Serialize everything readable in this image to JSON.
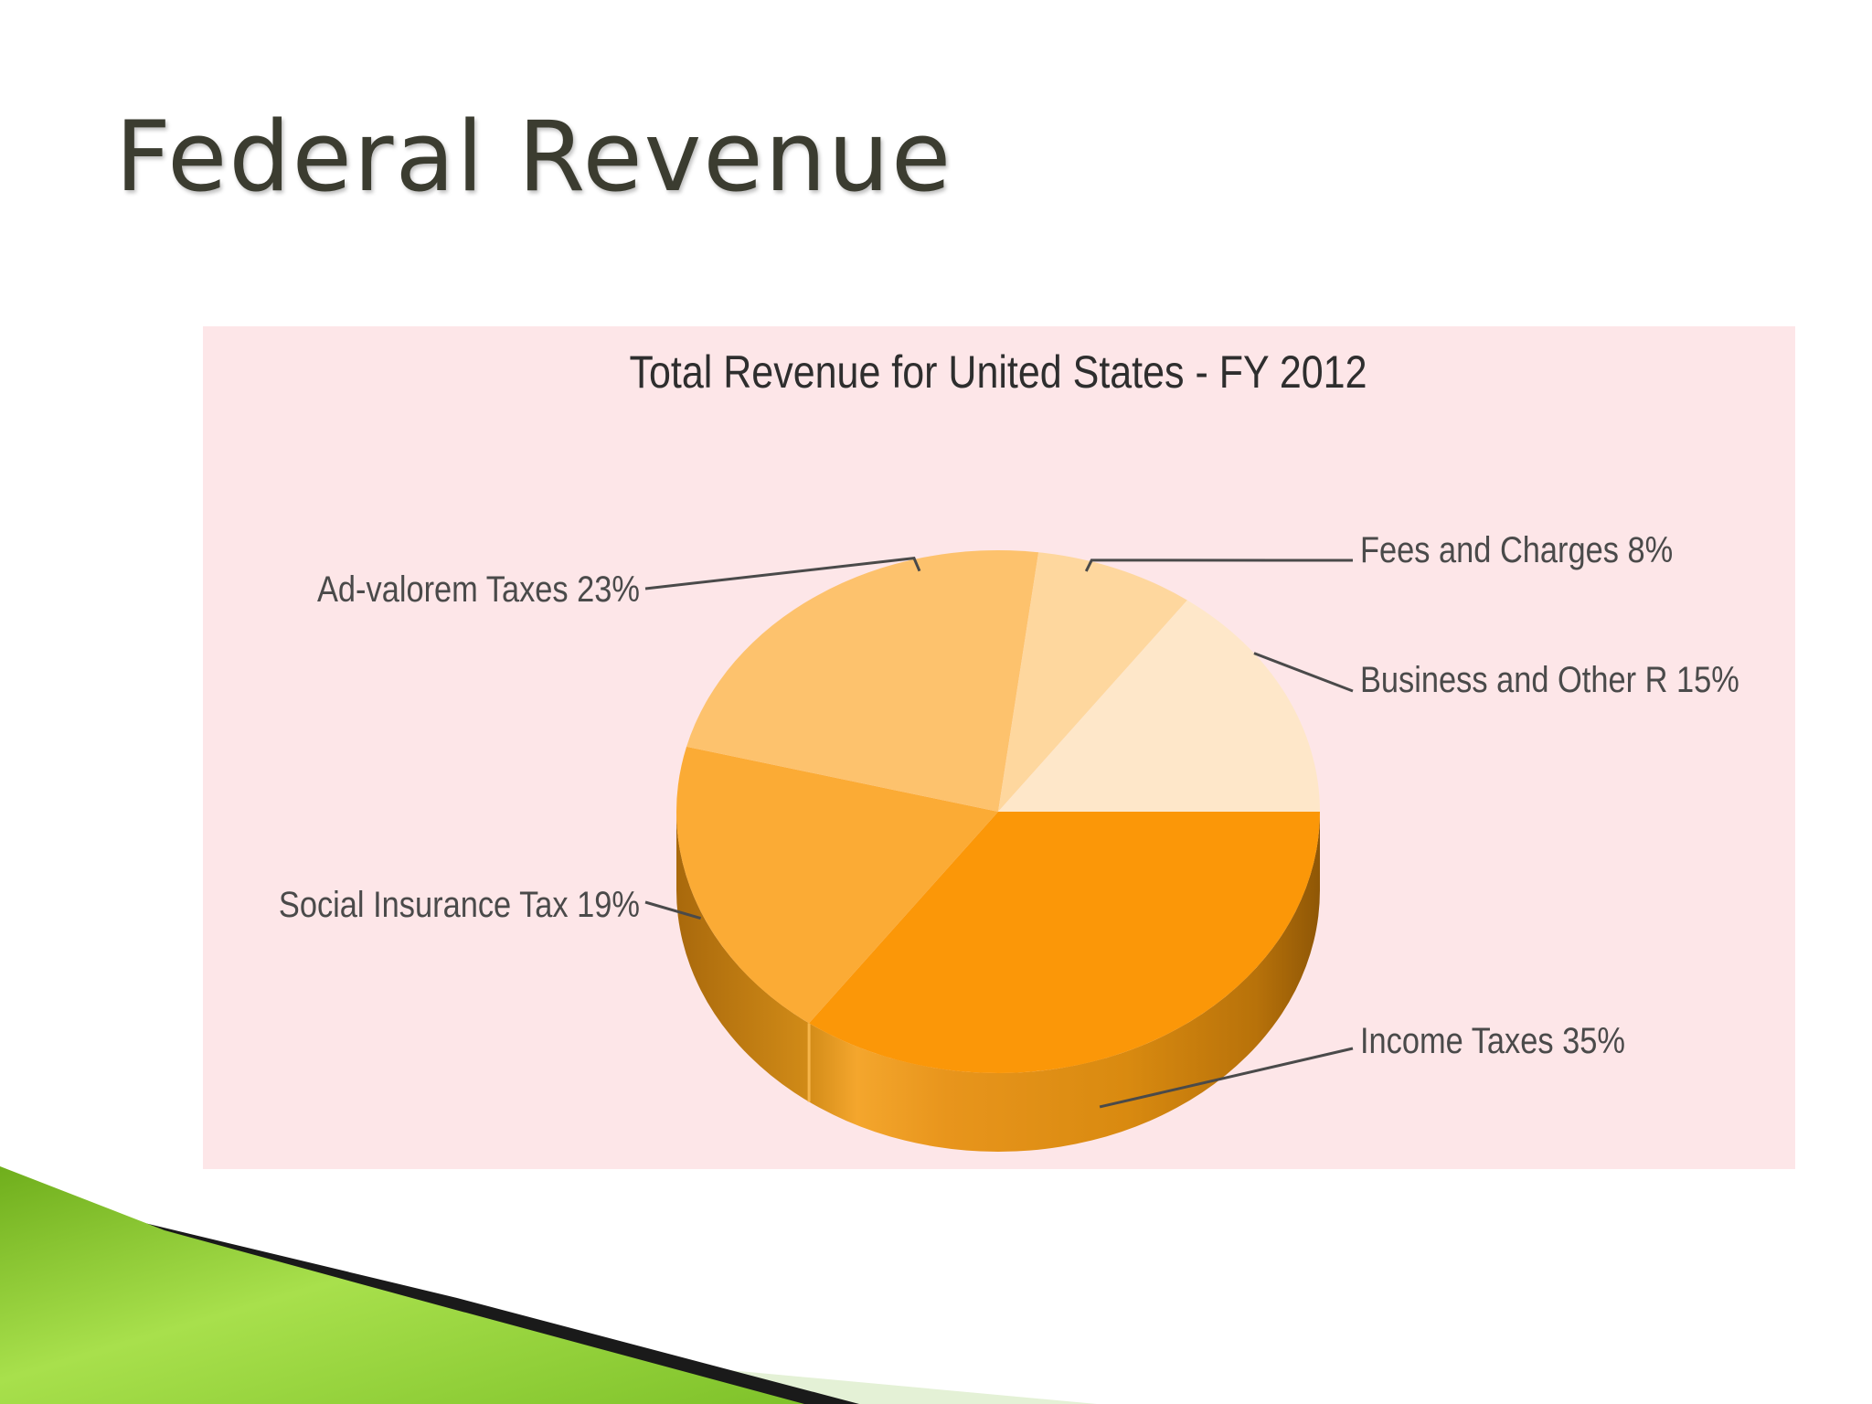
{
  "slide": {
    "title": "Federal Revenue"
  },
  "colors": {
    "panel_bg": "#fde6e8",
    "title_color": "#3b3c30",
    "accent_green": "#8cc63f"
  },
  "chart_data": {
    "type": "pie",
    "style": "3d",
    "title": "Total Revenue for United States - FY 2012",
    "unit": "%",
    "slices": [
      {
        "label": "Income Taxes 35%",
        "name": "Income Taxes",
        "value": 35,
        "color": "#fb9708"
      },
      {
        "label": "Social Insurance Tax 19%",
        "name": "Social Insurance Tax",
        "value": 19,
        "color": "#fbab35"
      },
      {
        "label": "Ad-valorem Taxes 23%",
        "name": "Ad-valorem Taxes",
        "value": 23,
        "color": "#fdc26d"
      },
      {
        "label": "Fees and Charges 8%",
        "name": "Fees and Charges",
        "value": 8,
        "color": "#fed79e"
      },
      {
        "label": "Business and Other R 15%",
        "name": "Business and Other R",
        "value": 15,
        "color": "#fee7c9"
      }
    ]
  }
}
